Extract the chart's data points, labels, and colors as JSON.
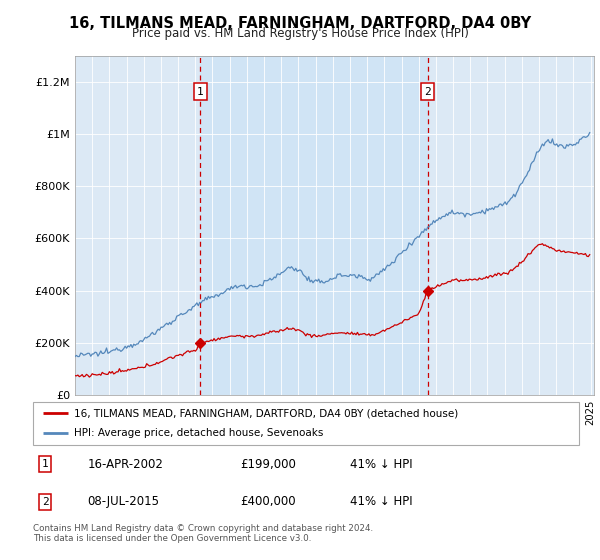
{
  "title": "16, TILMANS MEAD, FARNINGHAM, DARTFORD, DA4 0BY",
  "subtitle": "Price paid vs. HM Land Registry's House Price Index (HPI)",
  "legend_line1": "16, TILMANS MEAD, FARNINGHAM, DARTFORD, DA4 0BY (detached house)",
  "legend_line2": "HPI: Average price, detached house, Sevenoaks",
  "transaction1_date": "16-APR-2002",
  "transaction1_price": "£199,000",
  "transaction1_hpi": "41% ↓ HPI",
  "transaction1_year": 2002.29,
  "transaction1_value": 199000,
  "transaction2_date": "08-JUL-2015",
  "transaction2_price": "£400,000",
  "transaction2_hpi": "41% ↓ HPI",
  "transaction2_year": 2015.52,
  "transaction2_value": 400000,
  "footnote": "Contains HM Land Registry data © Crown copyright and database right 2024.\nThis data is licensed under the Open Government Licence v3.0.",
  "red_color": "#cc0000",
  "blue_color": "#5588bb",
  "shade_color": "#d0e4f5",
  "background_color": "#dce9f5",
  "ylim": [
    0,
    1300000
  ],
  "xlim_start": 1995.0,
  "xlim_end": 2025.2
}
